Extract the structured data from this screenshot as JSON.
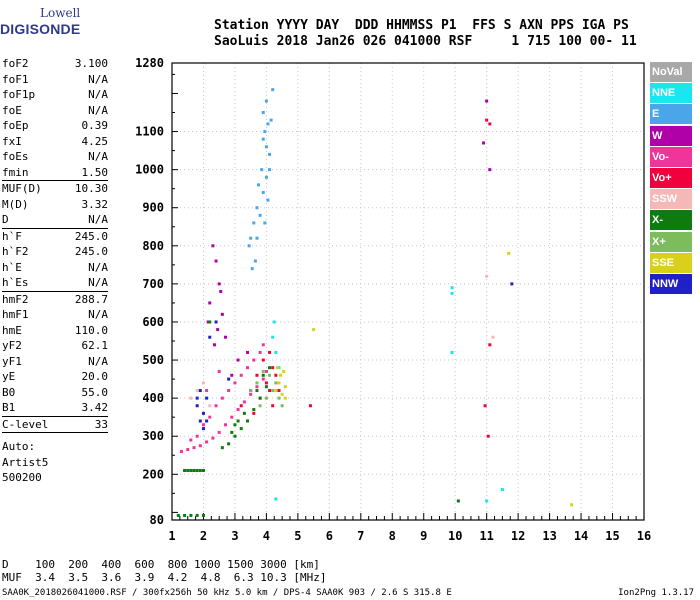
{
  "logo": {
    "line1": "Lowell",
    "line2": "DIGISONDE"
  },
  "header": {
    "line1": "Station YYYY DAY  DDD HHMMSS P1  FFS S AXN PPS IGA PS",
    "line2": "SaoLuis 2018 Jan26 026 041000 RSF     1 715 100 00- 11"
  },
  "params": [
    {
      "group": [
        {
          "k": "foF2",
          "v": "3.100"
        },
        {
          "k": "foF1",
          "v": "N/A"
        },
        {
          "k": "foF1p",
          "v": "N/A"
        },
        {
          "k": "foE",
          "v": "N/A"
        },
        {
          "k": "foEp",
          "v": "0.39"
        },
        {
          "k": "fxI",
          "v": "4.25"
        },
        {
          "k": "foEs",
          "v": "N/A"
        },
        {
          "k": "fmin",
          "v": "1.50"
        }
      ]
    },
    {
      "group": [
        {
          "k": "MUF(D)",
          "v": "10.30"
        },
        {
          "k": "M(D)",
          "v": "3.32"
        },
        {
          "k": "D",
          "v": "N/A"
        }
      ]
    },
    {
      "group": [
        {
          "k": "h`F",
          "v": "245.0"
        },
        {
          "k": "h`F2",
          "v": "245.0"
        },
        {
          "k": "h`E",
          "v": "N/A"
        },
        {
          "k": "h`Es",
          "v": "N/A"
        }
      ]
    },
    {
      "group": [
        {
          "k": "hmF2",
          "v": "288.7"
        },
        {
          "k": "hmF1",
          "v": "N/A"
        },
        {
          "k": "hmE",
          "v": "110.0"
        },
        {
          "k": "yF2",
          "v": "62.1"
        },
        {
          "k": "yF1",
          "v": "N/A"
        },
        {
          "k": "yE",
          "v": "20.0"
        },
        {
          "k": "B0",
          "v": "55.0"
        },
        {
          "k": "B1",
          "v": "3.42"
        }
      ]
    },
    {
      "group": [
        {
          "k": "C-level",
          "v": "33"
        }
      ]
    }
  ],
  "autoscale": [
    "Auto:",
    "Artist5",
    "500200"
  ],
  "legend": [
    {
      "label": "NoVal",
      "color": "#a8a8a8"
    },
    {
      "label": "NNE",
      "color": "#19e6f0"
    },
    {
      "label": "E",
      "color": "#4aa6e8"
    },
    {
      "label": "W",
      "color": "#b000a8"
    },
    {
      "label": "Vo-",
      "color": "#f0349a"
    },
    {
      "label": "Vo+",
      "color": "#f0003c"
    },
    {
      "label": "SSW",
      "color": "#f4b8b8"
    },
    {
      "label": "X-",
      "color": "#0f7a0f"
    },
    {
      "label": "X+",
      "color": "#7cbc5c"
    },
    {
      "label": "SSE",
      "color": "#d8d01a"
    },
    {
      "label": "NNW",
      "color": "#2020c8"
    }
  ],
  "dtable": {
    "line1": "D    100  200  400  600  800 1000 1500 3000 [km]",
    "line2": "MUF  3.4  3.5  3.6  3.9  4.2  4.8  6.3 10.3 [MHz]"
  },
  "footer": "SAA0K_2018026041000.RSF / 300fx256h 50 kHz 5.0 km / DPS-4 SAA0K 903 / 2.6 S 315.8 E",
  "version": "Ion2Png 1.3.17",
  "chart_data": {
    "type": "scatter",
    "title": "",
    "xlabel": "",
    "ylabel": "",
    "xlim": [
      1,
      16
    ],
    "ylim": [
      80,
      1280
    ],
    "xticks": [
      1,
      2,
      3,
      4,
      5,
      6,
      7,
      8,
      9,
      10,
      11,
      12,
      13,
      14,
      15,
      16
    ],
    "yticks": [
      80,
      200,
      300,
      400,
      500,
      600,
      700,
      800,
      900,
      1000,
      1100,
      1280
    ],
    "grid": true,
    "legend_position": "right",
    "series": [
      {
        "name": "E",
        "color": "#4aa6e8",
        "points": [
          [
            3.9,
            1080
          ],
          [
            3.95,
            1100
          ],
          [
            4.0,
            1060
          ],
          [
            4.05,
            1120
          ],
          [
            4.1,
            1040
          ],
          [
            4.0,
            980
          ],
          [
            3.85,
            1000
          ],
          [
            3.9,
            940
          ],
          [
            4.1,
            1000
          ],
          [
            3.7,
            900
          ],
          [
            3.75,
            960
          ],
          [
            4.05,
            920
          ],
          [
            3.6,
            860
          ],
          [
            3.8,
            880
          ],
          [
            3.5,
            820
          ],
          [
            3.45,
            800
          ],
          [
            3.9,
            1150
          ],
          [
            4.0,
            1180
          ],
          [
            4.15,
            1130
          ],
          [
            3.65,
            760
          ],
          [
            3.55,
            740
          ],
          [
            4.2,
            1210
          ],
          [
            3.95,
            860
          ],
          [
            3.7,
            820
          ]
        ]
      },
      {
        "name": "NNE",
        "color": "#19e6f0",
        "points": [
          [
            4.2,
            560
          ],
          [
            4.3,
            520
          ],
          [
            4.4,
            480
          ],
          [
            4.25,
            600
          ],
          [
            9.9,
            690
          ],
          [
            9.9,
            675
          ],
          [
            9.9,
            520
          ],
          [
            11.0,
            130
          ],
          [
            11.5,
            160
          ],
          [
            4.3,
            135
          ]
        ]
      },
      {
        "name": "W",
        "color": "#b000a8",
        "points": [
          [
            2.3,
            800
          ],
          [
            2.4,
            760
          ],
          [
            2.5,
            700
          ],
          [
            2.2,
            650
          ],
          [
            2.6,
            620
          ],
          [
            2.45,
            580
          ],
          [
            2.7,
            560
          ],
          [
            2.35,
            540
          ],
          [
            3.1,
            500
          ],
          [
            3.4,
            520
          ],
          [
            2.9,
            460
          ],
          [
            2.15,
            600
          ],
          [
            2.55,
            680
          ],
          [
            11.0,
            1180
          ],
          [
            11.1,
            1000
          ],
          [
            10.9,
            1070
          ]
        ]
      },
      {
        "name": "Vo-",
        "color": "#f0349a",
        "points": [
          [
            1.3,
            260
          ],
          [
            1.5,
            265
          ],
          [
            1.7,
            270
          ],
          [
            1.9,
            275
          ],
          [
            2.1,
            285
          ],
          [
            2.3,
            295
          ],
          [
            2.5,
            310
          ],
          [
            2.7,
            330
          ],
          [
            2.9,
            350
          ],
          [
            3.1,
            370
          ],
          [
            3.3,
            390
          ],
          [
            3.5,
            410
          ],
          [
            3.7,
            430
          ],
          [
            3.9,
            450
          ],
          [
            4.0,
            470
          ],
          [
            2.0,
            330
          ],
          [
            2.2,
            350
          ],
          [
            1.8,
            300
          ],
          [
            1.6,
            290
          ],
          [
            2.4,
            380
          ],
          [
            2.6,
            400
          ],
          [
            2.8,
            420
          ],
          [
            3.0,
            440
          ],
          [
            3.2,
            460
          ],
          [
            3.4,
            480
          ],
          [
            3.6,
            500
          ],
          [
            3.8,
            520
          ],
          [
            3.9,
            540
          ],
          [
            2.1,
            420
          ],
          [
            2.5,
            470
          ]
        ]
      },
      {
        "name": "Vo+",
        "color": "#f0003c",
        "points": [
          [
            3.2,
            380
          ],
          [
            3.5,
            420
          ],
          [
            3.7,
            460
          ],
          [
            3.9,
            500
          ],
          [
            4.1,
            520
          ],
          [
            4.2,
            480
          ],
          [
            4.0,
            440
          ],
          [
            3.8,
            400
          ],
          [
            4.3,
            460
          ],
          [
            4.1,
            420
          ],
          [
            3.6,
            360
          ],
          [
            3.4,
            340
          ],
          [
            4.4,
            420
          ],
          [
            4.2,
            380
          ],
          [
            11.1,
            1120
          ],
          [
            11.0,
            1130
          ],
          [
            11.1,
            540
          ],
          [
            10.95,
            380
          ],
          [
            11.05,
            300
          ],
          [
            5.4,
            380
          ]
        ]
      },
      {
        "name": "SSW",
        "color": "#f4b8b8",
        "points": [
          [
            1.6,
            400
          ],
          [
            1.8,
            420
          ],
          [
            2.0,
            440
          ],
          [
            2.2,
            380
          ],
          [
            11.0,
            720
          ],
          [
            11.2,
            560
          ]
        ]
      },
      {
        "name": "X-",
        "color": "#0f7a0f",
        "points": [
          [
            1.4,
            210
          ],
          [
            1.5,
            210
          ],
          [
            1.6,
            210
          ],
          [
            1.7,
            210
          ],
          [
            1.8,
            210
          ],
          [
            1.9,
            210
          ],
          [
            2.0,
            210
          ],
          [
            1.2,
            92
          ],
          [
            1.4,
            92
          ],
          [
            1.6,
            92
          ],
          [
            1.8,
            92
          ],
          [
            2.0,
            92
          ],
          [
            2.6,
            270
          ],
          [
            2.8,
            280
          ],
          [
            3.0,
            300
          ],
          [
            3.2,
            320
          ],
          [
            3.4,
            340
          ],
          [
            3.6,
            370
          ],
          [
            3.8,
            400
          ],
          [
            4.0,
            430
          ],
          [
            3.0,
            330
          ],
          [
            3.3,
            360
          ],
          [
            3.7,
            420
          ],
          [
            3.9,
            460
          ],
          [
            4.1,
            480
          ],
          [
            2.9,
            310
          ],
          [
            3.1,
            340
          ],
          [
            10.1,
            130
          ],
          [
            2.2,
            600
          ]
        ]
      },
      {
        "name": "X+",
        "color": "#7cbc5c",
        "points": [
          [
            3.5,
            420
          ],
          [
            3.7,
            440
          ],
          [
            3.9,
            470
          ],
          [
            4.1,
            460
          ],
          [
            4.3,
            440
          ],
          [
            4.4,
            400
          ],
          [
            4.2,
            420
          ],
          [
            4.0,
            400
          ],
          [
            3.8,
            380
          ],
          [
            4.5,
            380
          ]
        ]
      },
      {
        "name": "SSE",
        "color": "#d8d01a",
        "points": [
          [
            4.3,
            420
          ],
          [
            4.4,
            440
          ],
          [
            4.5,
            410
          ],
          [
            4.6,
            430
          ],
          [
            4.45,
            460
          ],
          [
            4.55,
            470
          ],
          [
            4.35,
            480
          ],
          [
            4.6,
            400
          ],
          [
            5.5,
            580
          ],
          [
            11.7,
            780
          ],
          [
            13.7,
            120
          ]
        ]
      },
      {
        "name": "NNW",
        "color": "#2020c8",
        "points": [
          [
            1.8,
            380
          ],
          [
            1.9,
            340
          ],
          [
            2.0,
            360
          ],
          [
            2.1,
            400
          ],
          [
            1.9,
            420
          ],
          [
            2.0,
            320
          ],
          [
            2.1,
            340
          ],
          [
            1.8,
            400
          ],
          [
            11.8,
            700
          ],
          [
            2.2,
            560
          ],
          [
            2.4,
            600
          ],
          [
            2.8,
            450
          ]
        ]
      }
    ]
  }
}
